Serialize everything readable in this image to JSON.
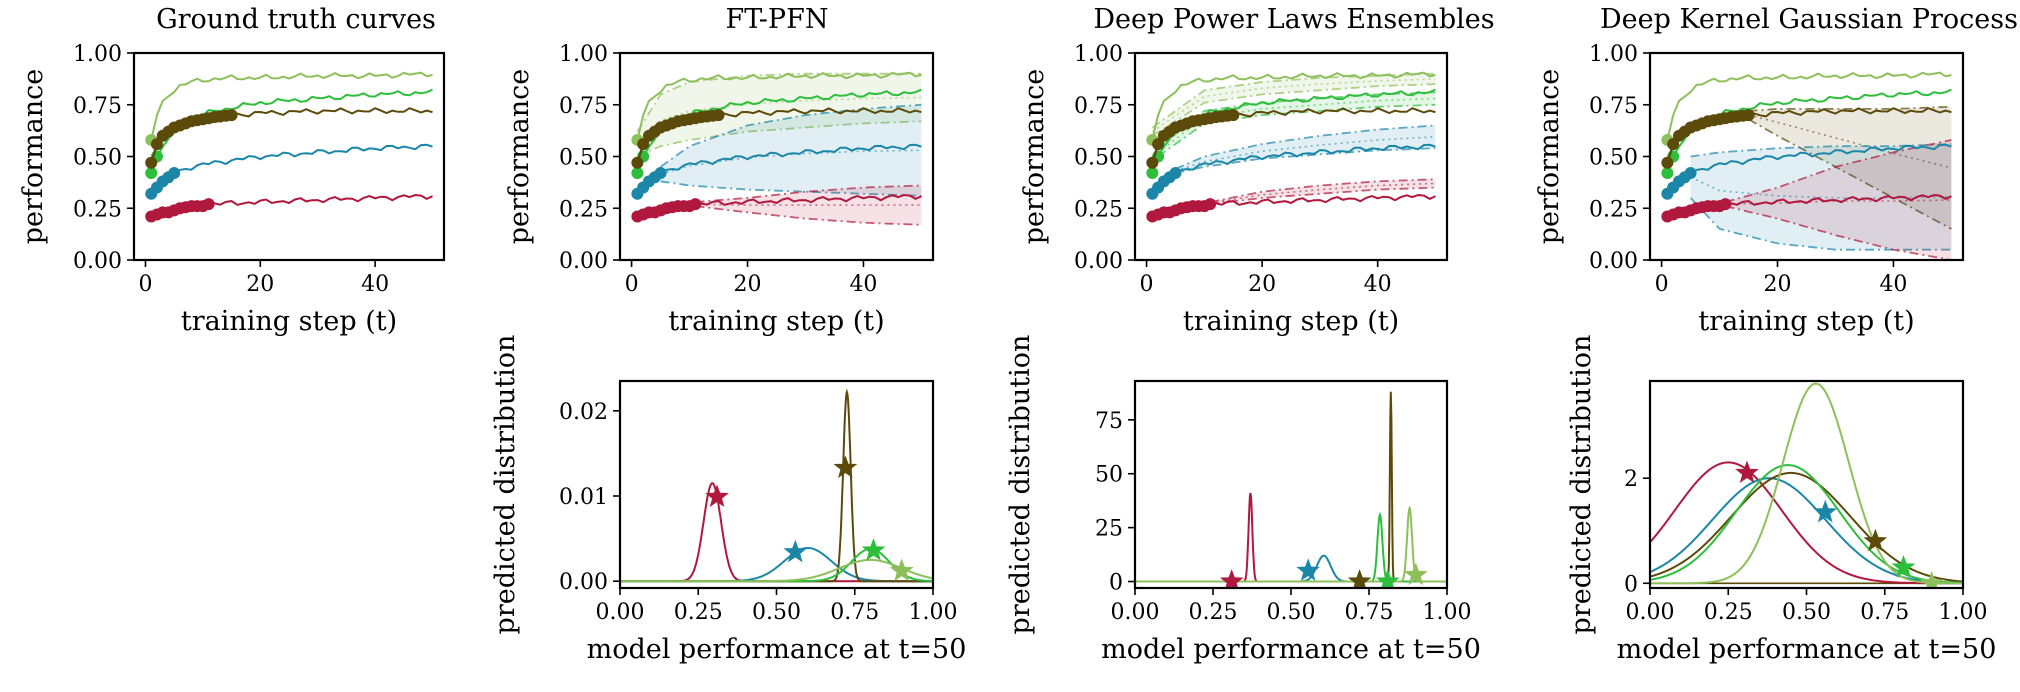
{
  "colors": {
    "light_green": "#8DBF5A",
    "bright_green": "#2DBE3C",
    "brown": "#5C4A0A",
    "teal": "#1B86A8",
    "crimson": "#B0183E"
  },
  "chart_data": [
    {
      "type": "line",
      "title": "Ground truth curves",
      "xlabel": "training step (t)",
      "ylabel": "performance",
      "xlim": [
        -2,
        52
      ],
      "ylim": [
        0,
        1
      ],
      "xticks": [
        0,
        20,
        40
      ],
      "yticks": [
        0.0,
        0.25,
        0.5,
        0.75,
        1.0
      ],
      "xtick_labels": [
        "0",
        "20",
        "40"
      ],
      "ytick_labels": [
        "0.00",
        "0.25",
        "0.50",
        "0.75",
        "1.00"
      ],
      "series": [
        {
          "color": "#8DBF5A",
          "observed_steps": 1,
          "x": [
            1,
            2,
            3,
            4,
            6,
            8,
            10,
            15,
            20,
            30,
            40,
            50
          ],
          "y": [
            0.58,
            0.7,
            0.76,
            0.8,
            0.84,
            0.86,
            0.87,
            0.88,
            0.88,
            0.89,
            0.89,
            0.9
          ]
        },
        {
          "color": "#2DBE3C",
          "observed_steps": 2,
          "x": [
            1,
            2,
            3,
            5,
            8,
            12,
            16,
            20,
            30,
            40,
            50
          ],
          "y": [
            0.42,
            0.5,
            0.55,
            0.62,
            0.68,
            0.72,
            0.74,
            0.76,
            0.78,
            0.8,
            0.81
          ]
        },
        {
          "color": "#5C4A0A",
          "observed_steps": 15,
          "x": [
            1,
            2,
            3,
            5,
            8,
            12,
            15,
            20,
            30,
            40,
            50
          ],
          "y": [
            0.47,
            0.56,
            0.6,
            0.64,
            0.67,
            0.69,
            0.7,
            0.71,
            0.72,
            0.72,
            0.72
          ]
        },
        {
          "color": "#1B86A8",
          "observed_steps": 5,
          "x": [
            1,
            2,
            3,
            4,
            5,
            8,
            12,
            20,
            30,
            40,
            50
          ],
          "y": [
            0.32,
            0.35,
            0.38,
            0.4,
            0.42,
            0.45,
            0.47,
            0.5,
            0.52,
            0.54,
            0.55
          ]
        },
        {
          "color": "#B0183E",
          "observed_steps": 11,
          "x": [
            1,
            2,
            3,
            4,
            5,
            6,
            8,
            10,
            11,
            20,
            30,
            40,
            50
          ],
          "y": [
            0.21,
            0.22,
            0.23,
            0.23,
            0.24,
            0.25,
            0.26,
            0.26,
            0.27,
            0.28,
            0.29,
            0.3,
            0.31
          ]
        }
      ]
    },
    {
      "type": "line",
      "title": "FT-PFN",
      "xlabel": "training step (t)",
      "ylabel": "performance",
      "xlim": [
        -2,
        52
      ],
      "ylim": [
        0,
        1
      ],
      "xticks": [
        0,
        20,
        40
      ],
      "yticks": [
        0.0,
        0.25,
        0.5,
        0.75,
        1.0
      ],
      "xtick_labels": [
        "0",
        "20",
        "40"
      ],
      "ytick_labels": [
        "0.00",
        "0.25",
        "0.50",
        "0.75",
        "1.00"
      ],
      "prediction_bands": [
        {
          "color": "#8DBF5A",
          "x": [
            1,
            5,
            10,
            20,
            30,
            40,
            50
          ],
          "lower": [
            0.5,
            0.55,
            0.58,
            0.62,
            0.64,
            0.66,
            0.67
          ],
          "upper": [
            0.62,
            0.8,
            0.86,
            0.89,
            0.9,
            0.9,
            0.9
          ]
        },
        {
          "color": "#1B86A8",
          "x": [
            5,
            10,
            20,
            30,
            40,
            50
          ],
          "lower": [
            0.38,
            0.36,
            0.34,
            0.33,
            0.32,
            0.31
          ],
          "upper": [
            0.45,
            0.55,
            0.65,
            0.7,
            0.73,
            0.75
          ]
        },
        {
          "color": "#B0183E",
          "x": [
            11,
            20,
            30,
            40,
            50
          ],
          "lower": [
            0.26,
            0.23,
            0.2,
            0.18,
            0.17
          ],
          "upper": [
            0.28,
            0.3,
            0.33,
            0.35,
            0.36
          ]
        }
      ]
    },
    {
      "type": "line",
      "title": "Deep Power Laws Ensembles",
      "xlabel": "training step (t)",
      "ylabel": "performance",
      "xlim": [
        -2,
        52
      ],
      "ylim": [
        0,
        1
      ],
      "xticks": [
        0,
        20,
        40
      ],
      "yticks": [
        0.0,
        0.25,
        0.5,
        0.75,
        1.0
      ],
      "xtick_labels": [
        "0",
        "20",
        "40"
      ],
      "ytick_labels": [
        "0.00",
        "0.25",
        "0.50",
        "0.75",
        "1.00"
      ],
      "prediction_bands": [
        {
          "color": "#8DBF5A",
          "x": [
            1,
            10,
            20,
            30,
            40,
            50
          ],
          "lower": [
            0.6,
            0.76,
            0.8,
            0.82,
            0.84,
            0.85
          ],
          "upper": [
            0.64,
            0.82,
            0.86,
            0.88,
            0.89,
            0.9
          ]
        },
        {
          "color": "#2DBE3C",
          "x": [
            2,
            10,
            20,
            30,
            40,
            50
          ],
          "lower": [
            0.5,
            0.66,
            0.7,
            0.72,
            0.74,
            0.75
          ],
          "upper": [
            0.54,
            0.72,
            0.76,
            0.78,
            0.8,
            0.81
          ]
        },
        {
          "color": "#1B86A8",
          "x": [
            5,
            10,
            20,
            30,
            40,
            50
          ],
          "lower": [
            0.42,
            0.45,
            0.49,
            0.51,
            0.53,
            0.54
          ],
          "upper": [
            0.44,
            0.5,
            0.56,
            0.6,
            0.63,
            0.65
          ]
        },
        {
          "color": "#B0183E",
          "x": [
            11,
            20,
            30,
            40,
            50
          ],
          "lower": [
            0.27,
            0.3,
            0.32,
            0.34,
            0.35
          ],
          "upper": [
            0.28,
            0.33,
            0.36,
            0.38,
            0.39
          ]
        }
      ]
    },
    {
      "type": "line",
      "title": "Deep Kernel Gaussian Process",
      "xlabel": "training step (t)",
      "ylabel": "performance",
      "xlim": [
        -2,
        52
      ],
      "ylim": [
        0,
        1
      ],
      "xticks": [
        0,
        20,
        40
      ],
      "yticks": [
        0.0,
        0.25,
        0.5,
        0.75,
        1.0
      ],
      "xtick_labels": [
        "0",
        "20",
        "40"
      ],
      "ytick_labels": [
        "0.00",
        "0.25",
        "0.50",
        "0.75",
        "1.00"
      ],
      "prediction_bands": [
        {
          "color": "#5C4A0A",
          "x": [
            15,
            20,
            30,
            40,
            50
          ],
          "lower": [
            0.68,
            0.6,
            0.45,
            0.3,
            0.15
          ],
          "upper": [
            0.72,
            0.73,
            0.73,
            0.73,
            0.74
          ]
        },
        {
          "color": "#1B86A8",
          "x": [
            5,
            10,
            20,
            30,
            40,
            50
          ],
          "lower": [
            0.3,
            0.15,
            0.08,
            0.05,
            0.05,
            0.05
          ],
          "upper": [
            0.5,
            0.52,
            0.54,
            0.55,
            0.55,
            0.56
          ]
        },
        {
          "color": "#B0183E",
          "x": [
            11,
            20,
            30,
            40,
            50
          ],
          "lower": [
            0.26,
            0.2,
            0.12,
            0.05,
            0.0
          ],
          "upper": [
            0.28,
            0.35,
            0.45,
            0.52,
            0.58
          ]
        }
      ]
    },
    {
      "type": "line",
      "title": "",
      "xlabel": "model performance at t=50",
      "ylabel": "predicted distribution",
      "xlim": [
        0,
        1
      ],
      "ylim": [
        -0.0008,
        0.0235
      ],
      "xticks": [
        0,
        0.25,
        0.5,
        0.75,
        1.0
      ],
      "yticks": [
        0.0,
        0.01,
        0.02
      ],
      "xtick_labels": [
        "0.00",
        "0.25",
        "0.50",
        "0.75",
        "1.00"
      ],
      "ytick_labels": [
        "0.00",
        "0.01",
        "0.02"
      ],
      "series": [
        {
          "color": "#B0183E",
          "kind": "gaussian",
          "mu": 0.295,
          "sigma": 0.028,
          "peak": 0.0115,
          "truth": {
            "x": 0.31,
            "y": 0.0099
          }
        },
        {
          "color": "#1B86A8",
          "kind": "gaussian",
          "mu": 0.6,
          "sigma": 0.075,
          "peak": 0.0039,
          "truth": {
            "x": 0.56,
            "y": 0.0034
          }
        },
        {
          "color": "#5C4A0A",
          "kind": "gaussian",
          "mu": 0.725,
          "sigma": 0.012,
          "peak": 0.0222,
          "truth": {
            "x": 0.72,
            "y": 0.0133
          }
        },
        {
          "color": "#2DBE3C",
          "kind": "gaussian",
          "mu": 0.8,
          "sigma": 0.06,
          "peak": 0.0038,
          "truth": {
            "x": 0.81,
            "y": 0.0036
          }
        },
        {
          "color": "#8DBF5A",
          "kind": "gaussian",
          "mu": 0.8,
          "sigma": 0.1,
          "peak": 0.0025,
          "truth": {
            "x": 0.9,
            "y": 0.0012
          }
        }
      ]
    },
    {
      "type": "line",
      "title": "",
      "xlabel": "model performance at t=50",
      "ylabel": "predicted distribution",
      "xlim": [
        0,
        1
      ],
      "ylim": [
        -3,
        93
      ],
      "xticks": [
        0,
        0.25,
        0.5,
        0.75,
        1.0
      ],
      "yticks": [
        0,
        25,
        50,
        75
      ],
      "xtick_labels": [
        "0.00",
        "0.25",
        "0.50",
        "0.75",
        "1.00"
      ],
      "ytick_labels": [
        "0",
        "25",
        "50",
        "75"
      ],
      "series": [
        {
          "color": "#B0183E",
          "kind": "gaussian",
          "mu": 0.37,
          "sigma": 0.006,
          "peak": 41,
          "truth": {
            "x": 0.31,
            "y": 0
          }
        },
        {
          "color": "#1B86A8",
          "kind": "gaussian",
          "mu": 0.605,
          "sigma": 0.022,
          "peak": 12,
          "truth": {
            "x": 0.555,
            "y": 5
          }
        },
        {
          "color": "#5C4A0A",
          "kind": "gaussian",
          "mu": 0.82,
          "sigma": 0.003,
          "peak": 88,
          "truth": {
            "x": 0.72,
            "y": 0
          }
        },
        {
          "color": "#2DBE3C",
          "kind": "gaussian",
          "mu": 0.785,
          "sigma": 0.008,
          "peak": 31,
          "truth": {
            "x": 0.81,
            "y": 0
          }
        },
        {
          "color": "#8DBF5A",
          "kind": "gaussian",
          "mu": 0.88,
          "sigma": 0.008,
          "peak": 34,
          "truth": {
            "x": 0.9,
            "y": 3
          }
        }
      ]
    },
    {
      "type": "line",
      "title": "",
      "xlabel": "model performance at t=50",
      "ylabel": "predicted distribution",
      "xlim": [
        0,
        1
      ],
      "ylim": [
        -0.09,
        3.85
      ],
      "xticks": [
        0,
        0.25,
        0.5,
        0.75,
        1.0
      ],
      "yticks": [
        0,
        2
      ],
      "xtick_labels": [
        "0.00",
        "0.25",
        "0.50",
        "0.75",
        "1.00"
      ],
      "ytick_labels": [
        "0",
        "2"
      ],
      "series": [
        {
          "color": "#B0183E",
          "kind": "gaussian",
          "mu": 0.25,
          "sigma": 0.17,
          "peak": 2.3,
          "truth": {
            "x": 0.31,
            "y": 2.1
          }
        },
        {
          "color": "#1B86A8",
          "kind": "gaussian",
          "mu": 0.38,
          "sigma": 0.18,
          "peak": 2.0,
          "truth": {
            "x": 0.56,
            "y": 1.35
          }
        },
        {
          "color": "#5C4A0A",
          "kind": "gaussian",
          "mu": 0.45,
          "sigma": 0.19,
          "peak": 2.1,
          "truth": {
            "x": 0.72,
            "y": 0.8
          }
        },
        {
          "color": "#2DBE3C",
          "kind": "gaussian",
          "mu": 0.44,
          "sigma": 0.165,
          "peak": 2.25,
          "truth": {
            "x": 0.81,
            "y": 0.3
          }
        },
        {
          "color": "#8DBF5A",
          "kind": "gaussian",
          "mu": 0.53,
          "sigma": 0.105,
          "peak": 3.8,
          "truth": {
            "x": 0.9,
            "y": 0.0
          }
        }
      ]
    }
  ]
}
